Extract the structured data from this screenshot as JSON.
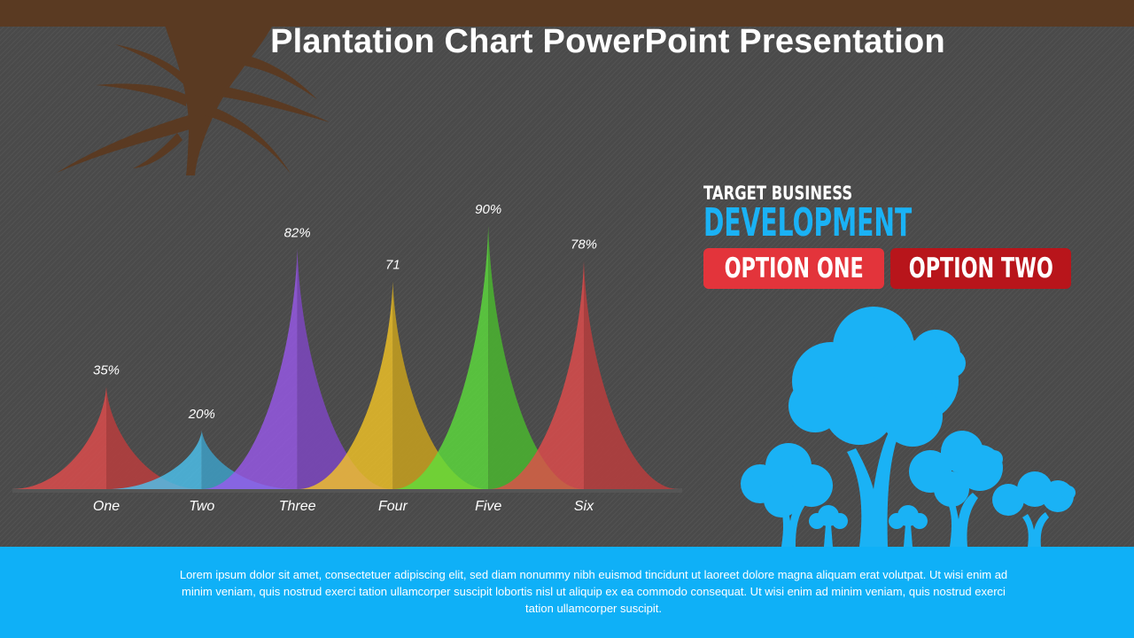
{
  "title": "Plantation Chart PowerPoint Presentation",
  "chart_data": {
    "type": "area",
    "categories": [
      "One",
      "Two",
      "Three",
      "Four",
      "Five",
      "Six"
    ],
    "values": [
      35,
      20,
      82,
      71,
      90,
      78
    ],
    "value_labels": [
      "35%",
      "20%",
      "82%",
      "71",
      "90%",
      "78%"
    ],
    "ylim": [
      0,
      100
    ],
    "colors": [
      "#e74c4c",
      "#4cc6f5",
      "#9b59ef",
      "#f9c824",
      "#5ce23b",
      "#e74c4c"
    ]
  },
  "info": {
    "subtitle": "TARGET BUSINESS",
    "heading": "DEVELOPMENT",
    "option_one": "OPTION ONE",
    "option_two": "OPTION TWO"
  },
  "colors": {
    "top_bar": "#5a3a22",
    "accent_blue": "#0fb0f7",
    "option_one": "#e3343b",
    "option_two": "#b8151b"
  },
  "footer": {
    "text": "Lorem ipsum dolor sit amet, consectetuer adipiscing elit, sed diam nonummy nibh euismod tincidunt ut laoreet dolore magna aliquam erat volutpat. Ut wisi enim ad minim veniam, quis nostrud exerci tation ullamcorper suscipit lobortis nisl ut aliquip ex ea commodo consequat. Ut wisi enim ad minim veniam, quis nostrud exerci tation ullamcorper suscipit."
  }
}
